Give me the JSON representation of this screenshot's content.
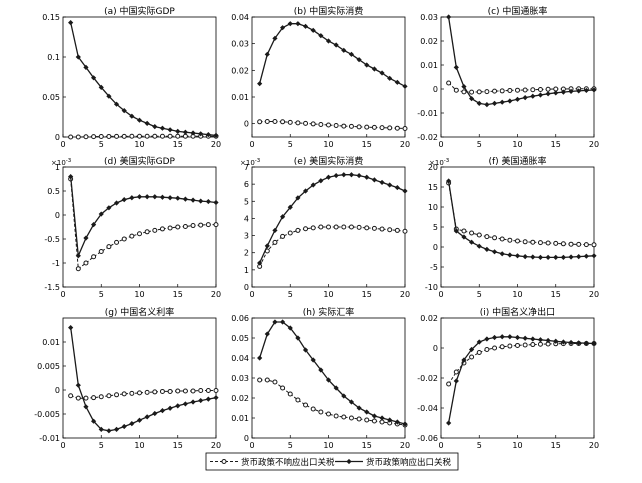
{
  "legend": {
    "items": [
      {
        "label": "货币政策不响应出口关税",
        "style": "dashed",
        "marker": "circle"
      },
      {
        "label": "货币政策响应出口关税",
        "style": "solid",
        "marker": "diamond"
      }
    ]
  },
  "colors": {
    "line": "#1a1a1a",
    "axis": "#000000",
    "background": "#ffffff"
  },
  "chart_data": [
    {
      "type": "line",
      "title": "(a) 中国实际GDP",
      "exponent": "",
      "xlim": [
        0,
        20
      ],
      "ylim": [
        0,
        0.15
      ],
      "xticks": [
        "0",
        "5",
        "10",
        "15",
        "20"
      ],
      "yticks": [
        {
          "v": 0,
          "t": "0"
        },
        {
          "v": 0.05,
          "t": "0.05"
        },
        {
          "v": 0.1,
          "t": "0.1"
        },
        {
          "v": 0.15,
          "t": "0.15"
        }
      ],
      "x": [
        1,
        2,
        3,
        4,
        5,
        6,
        7,
        8,
        9,
        10,
        11,
        12,
        13,
        14,
        15,
        16,
        17,
        18,
        19,
        20
      ],
      "series": [
        {
          "values": [
            0,
            0,
            0.0003,
            0.0005,
            0.0006,
            0.0007,
            0.0008,
            0.0008,
            0.0009,
            0.0009,
            0.0009,
            0.0009,
            0.0009,
            0.0009,
            0.0009,
            0.0009,
            0.0009,
            0.0009,
            0.0009,
            0.0009
          ]
        },
        {
          "values": [
            0.143,
            0.1,
            0.087,
            0.074,
            0.062,
            0.051,
            0.041,
            0.033,
            0.026,
            0.021,
            0.017,
            0.013,
            0.011,
            0.009,
            0.007,
            0.006,
            0.005,
            0.004,
            0.003,
            0.002
          ]
        }
      ]
    },
    {
      "type": "line",
      "title": "(b) 中国实际消费",
      "exponent": "",
      "xlim": [
        0,
        20
      ],
      "ylim": [
        -0.005,
        0.04
      ],
      "xticks": [
        "0",
        "5",
        "10",
        "15",
        "20"
      ],
      "yticks": [
        {
          "v": 0,
          "t": "0"
        },
        {
          "v": 0.01,
          "t": "0.01"
        },
        {
          "v": 0.02,
          "t": "0.02"
        },
        {
          "v": 0.03,
          "t": "0.03"
        },
        {
          "v": 0.04,
          "t": "0.04"
        }
      ],
      "x": [
        1,
        2,
        3,
        4,
        5,
        6,
        7,
        8,
        9,
        10,
        11,
        12,
        13,
        14,
        15,
        16,
        17,
        18,
        19,
        20
      ],
      "series": [
        {
          "values": [
            0.0007,
            0.0008,
            0.0008,
            0.0007,
            0.0005,
            0.0003,
            0.0001,
            -0.0001,
            -0.0003,
            -0.0005,
            -0.0007,
            -0.0009,
            -0.001,
            -0.0012,
            -0.0013,
            -0.0014,
            -0.0015,
            -0.0016,
            -0.0017,
            -0.0018
          ]
        },
        {
          "values": [
            0.015,
            0.026,
            0.032,
            0.036,
            0.0375,
            0.0375,
            0.0365,
            0.035,
            0.033,
            0.031,
            0.0295,
            0.0275,
            0.026,
            0.024,
            0.022,
            0.0205,
            0.019,
            0.017,
            0.0155,
            0.014
          ]
        }
      ]
    },
    {
      "type": "line",
      "title": "(c) 中国通胀率",
      "exponent": "",
      "xlim": [
        0,
        20
      ],
      "ylim": [
        -0.02,
        0.03
      ],
      "xticks": [
        "0",
        "5",
        "10",
        "15",
        "20"
      ],
      "yticks": [
        {
          "v": -0.02,
          "t": "-0.02"
        },
        {
          "v": -0.01,
          "t": "-0.01"
        },
        {
          "v": 0,
          "t": "0"
        },
        {
          "v": 0.01,
          "t": "0.01"
        },
        {
          "v": 0.02,
          "t": "0.02"
        },
        {
          "v": 0.03,
          "t": "0.03"
        }
      ],
      "x": [
        1,
        2,
        3,
        4,
        5,
        6,
        7,
        8,
        9,
        10,
        11,
        12,
        13,
        14,
        15,
        16,
        17,
        18,
        19,
        20
      ],
      "series": [
        {
          "values": [
            0.0025,
            -0.0005,
            -0.0012,
            -0.0013,
            -0.0012,
            -0.0011,
            -0.0009,
            -0.0008,
            -0.0006,
            -0.0005,
            -0.0004,
            -0.0003,
            -0.0002,
            -0.0001,
            0,
            0,
            0.0001,
            0.0001,
            0.0001,
            0.0001
          ]
        },
        {
          "values": [
            0.03,
            0.009,
            0.001,
            -0.004,
            -0.006,
            -0.0065,
            -0.006,
            -0.0055,
            -0.005,
            -0.0043,
            -0.0036,
            -0.003,
            -0.0025,
            -0.002,
            -0.0016,
            -0.0013,
            -0.001,
            -0.0008,
            -0.0006,
            -0.0004
          ]
        }
      ]
    },
    {
      "type": "line",
      "title": "(d) 美国实际GDP",
      "exponent": "×10",
      "xlim": [
        0,
        20
      ],
      "ylim": [
        -1.5,
        1
      ],
      "xticks": [
        "0",
        "5",
        "10",
        "15",
        "20"
      ],
      "yticks": [
        {
          "v": -1.5,
          "t": "-1.5"
        },
        {
          "v": -1,
          "t": "-1"
        },
        {
          "v": -0.5,
          "t": "-0.5"
        },
        {
          "v": 0,
          "t": "0"
        },
        {
          "v": 0.5,
          "t": "0.5"
        },
        {
          "v": 1,
          "t": "1"
        }
      ],
      "x": [
        1,
        2,
        3,
        4,
        5,
        6,
        7,
        8,
        9,
        10,
        11,
        12,
        13,
        14,
        15,
        16,
        17,
        18,
        19,
        20
      ],
      "series": [
        {
          "values": [
            0.75,
            -1.12,
            -1.0,
            -0.87,
            -0.76,
            -0.66,
            -0.57,
            -0.5,
            -0.44,
            -0.39,
            -0.35,
            -0.32,
            -0.29,
            -0.27,
            -0.25,
            -0.24,
            -0.22,
            -0.21,
            -0.2,
            -0.2
          ]
        },
        {
          "values": [
            0.8,
            -0.85,
            -0.48,
            -0.2,
            0.02,
            0.15,
            0.25,
            0.32,
            0.36,
            0.38,
            0.38,
            0.38,
            0.37,
            0.36,
            0.35,
            0.33,
            0.31,
            0.29,
            0.28,
            0.26
          ]
        }
      ]
    },
    {
      "type": "line",
      "title": "(e) 美国实际消费",
      "exponent": "×10",
      "xlim": [
        0,
        20
      ],
      "ylim": [
        0,
        7
      ],
      "xticks": [
        "0",
        "5",
        "10",
        "15",
        "20"
      ],
      "yticks": [
        {
          "v": 0,
          "t": "0"
        },
        {
          "v": 1,
          "t": "1"
        },
        {
          "v": 2,
          "t": "2"
        },
        {
          "v": 3,
          "t": "3"
        },
        {
          "v": 4,
          "t": "4"
        },
        {
          "v": 5,
          "t": "5"
        },
        {
          "v": 6,
          "t": "6"
        },
        {
          "v": 7,
          "t": "7"
        }
      ],
      "x": [
        1,
        2,
        3,
        4,
        5,
        6,
        7,
        8,
        9,
        10,
        11,
        12,
        13,
        14,
        15,
        16,
        17,
        18,
        19,
        20
      ],
      "series": [
        {
          "values": [
            1.2,
            2.1,
            2.6,
            2.95,
            3.15,
            3.3,
            3.4,
            3.45,
            3.5,
            3.5,
            3.5,
            3.5,
            3.5,
            3.48,
            3.45,
            3.42,
            3.38,
            3.34,
            3.3,
            3.25
          ]
        },
        {
          "values": [
            1.4,
            2.4,
            3.3,
            4.1,
            4.65,
            5.2,
            5.6,
            5.95,
            6.2,
            6.4,
            6.5,
            6.55,
            6.55,
            6.5,
            6.4,
            6.25,
            6.1,
            5.95,
            5.8,
            5.6
          ]
        }
      ]
    },
    {
      "type": "line",
      "title": "(f) 美国通胀率",
      "exponent": "×10",
      "xlim": [
        0,
        20
      ],
      "ylim": [
        -10,
        20
      ],
      "xticks": [
        "0",
        "5",
        "10",
        "15",
        "20"
      ],
      "yticks": [
        {
          "v": -10,
          "t": "-10"
        },
        {
          "v": -5,
          "t": "-5"
        },
        {
          "v": 0,
          "t": "0"
        },
        {
          "v": 5,
          "t": "5"
        },
        {
          "v": 10,
          "t": "10"
        },
        {
          "v": 15,
          "t": "15"
        },
        {
          "v": 20,
          "t": "20"
        }
      ],
      "x": [
        1,
        2,
        3,
        4,
        5,
        6,
        7,
        8,
        9,
        10,
        11,
        12,
        13,
        14,
        15,
        16,
        17,
        18,
        19,
        20
      ],
      "series": [
        {
          "values": [
            16,
            4.5,
            4,
            3.5,
            3,
            2.6,
            2.3,
            2.0,
            1.7,
            1.5,
            1.3,
            1.2,
            1.1,
            1.0,
            0.9,
            0.8,
            0.7,
            0.65,
            0.6,
            0.55
          ]
        },
        {
          "values": [
            16.5,
            4,
            2.5,
            1.2,
            0.2,
            -0.6,
            -1.2,
            -1.7,
            -2.0,
            -2.2,
            -2.4,
            -2.5,
            -2.6,
            -2.6,
            -2.6,
            -2.6,
            -2.5,
            -2.4,
            -2.3,
            -2.2
          ]
        }
      ]
    },
    {
      "type": "line",
      "title": "(g) 中国名义利率",
      "exponent": "",
      "xlim": [
        0,
        20
      ],
      "ylim": [
        -0.01,
        0.015
      ],
      "xticks": [
        "0",
        "5",
        "10",
        "15",
        "20"
      ],
      "yticks": [
        {
          "v": -0.01,
          "t": "-0.01"
        },
        {
          "v": -0.005,
          "t": "-0.005"
        },
        {
          "v": 0,
          "t": "0"
        },
        {
          "v": 0.005,
          "t": "0.005"
        },
        {
          "v": 0.01,
          "t": "0.01"
        }
      ],
      "x": [
        1,
        2,
        3,
        4,
        5,
        6,
        7,
        8,
        9,
        10,
        11,
        12,
        13,
        14,
        15,
        16,
        17,
        18,
        19,
        20
      ],
      "series": [
        {
          "values": [
            -0.0012,
            -0.0017,
            -0.0017,
            -0.0016,
            -0.0014,
            -0.0012,
            -0.001,
            -0.0008,
            -0.0007,
            -0.0006,
            -0.0005,
            -0.0004,
            -0.0003,
            -0.0003,
            -0.0002,
            -0.0002,
            -0.0002,
            -0.0001,
            -0.0001,
            -0.0001
          ]
        },
        {
          "values": [
            0.013,
            0.001,
            -0.0035,
            -0.0065,
            -0.0082,
            -0.0085,
            -0.0082,
            -0.0076,
            -0.007,
            -0.0063,
            -0.0056,
            -0.0049,
            -0.0043,
            -0.0038,
            -0.0033,
            -0.0029,
            -0.0025,
            -0.0022,
            -0.0019,
            -0.0016
          ]
        }
      ]
    },
    {
      "type": "line",
      "title": "(h) 实际汇率",
      "exponent": "",
      "xlim": [
        0,
        20
      ],
      "ylim": [
        0,
        0.06
      ],
      "xticks": [
        "0",
        "5",
        "10",
        "15",
        "20"
      ],
      "yticks": [
        {
          "v": 0,
          "t": "0"
        },
        {
          "v": 0.01,
          "t": "0.01"
        },
        {
          "v": 0.02,
          "t": "0.02"
        },
        {
          "v": 0.03,
          "t": "0.03"
        },
        {
          "v": 0.04,
          "t": "0.04"
        },
        {
          "v": 0.05,
          "t": "0.05"
        },
        {
          "v": 0.06,
          "t": "0.06"
        }
      ],
      "x": [
        1,
        2,
        3,
        4,
        5,
        6,
        7,
        8,
        9,
        10,
        11,
        12,
        13,
        14,
        15,
        16,
        17,
        18,
        19,
        20
      ],
      "series": [
        {
          "values": [
            0.029,
            0.029,
            0.028,
            0.025,
            0.022,
            0.019,
            0.0165,
            0.0145,
            0.013,
            0.012,
            0.011,
            0.0105,
            0.01,
            0.0095,
            0.009,
            0.0085,
            0.008,
            0.0075,
            0.007,
            0.0065
          ]
        },
        {
          "values": [
            0.04,
            0.052,
            0.058,
            0.058,
            0.055,
            0.05,
            0.044,
            0.039,
            0.034,
            0.029,
            0.025,
            0.021,
            0.018,
            0.015,
            0.013,
            0.011,
            0.01,
            0.009,
            0.008,
            0.007
          ]
        }
      ]
    },
    {
      "type": "line",
      "title": "(i) 中国名义净出口",
      "exponent": "",
      "xlim": [
        0,
        20
      ],
      "ylim": [
        -0.06,
        0.02
      ],
      "xticks": [
        "0",
        "5",
        "10",
        "15",
        "20"
      ],
      "yticks": [
        {
          "v": -0.06,
          "t": "-0.06"
        },
        {
          "v": -0.04,
          "t": "-0.04"
        },
        {
          "v": -0.02,
          "t": "-0.02"
        },
        {
          "v": 0,
          "t": "0"
        },
        {
          "v": 0.02,
          "t": "0.02"
        }
      ],
      "x": [
        1,
        2,
        3,
        4,
        5,
        6,
        7,
        8,
        9,
        10,
        11,
        12,
        13,
        14,
        15,
        16,
        17,
        18,
        19,
        20
      ],
      "series": [
        {
          "values": [
            -0.024,
            -0.016,
            -0.01,
            -0.006,
            -0.003,
            -0.001,
            0,
            0.0008,
            0.0013,
            0.0017,
            0.002,
            0.0023,
            0.0025,
            0.0027,
            0.0028,
            0.0029,
            0.003,
            0.003,
            0.003,
            0.003
          ]
        },
        {
          "values": [
            -0.05,
            -0.022,
            -0.008,
            -0.001,
            0.004,
            0.006,
            0.007,
            0.0075,
            0.0075,
            0.007,
            0.0065,
            0.006,
            0.0055,
            0.005,
            0.0045,
            0.004,
            0.0037,
            0.0034,
            0.0032,
            0.003
          ]
        }
      ]
    }
  ]
}
